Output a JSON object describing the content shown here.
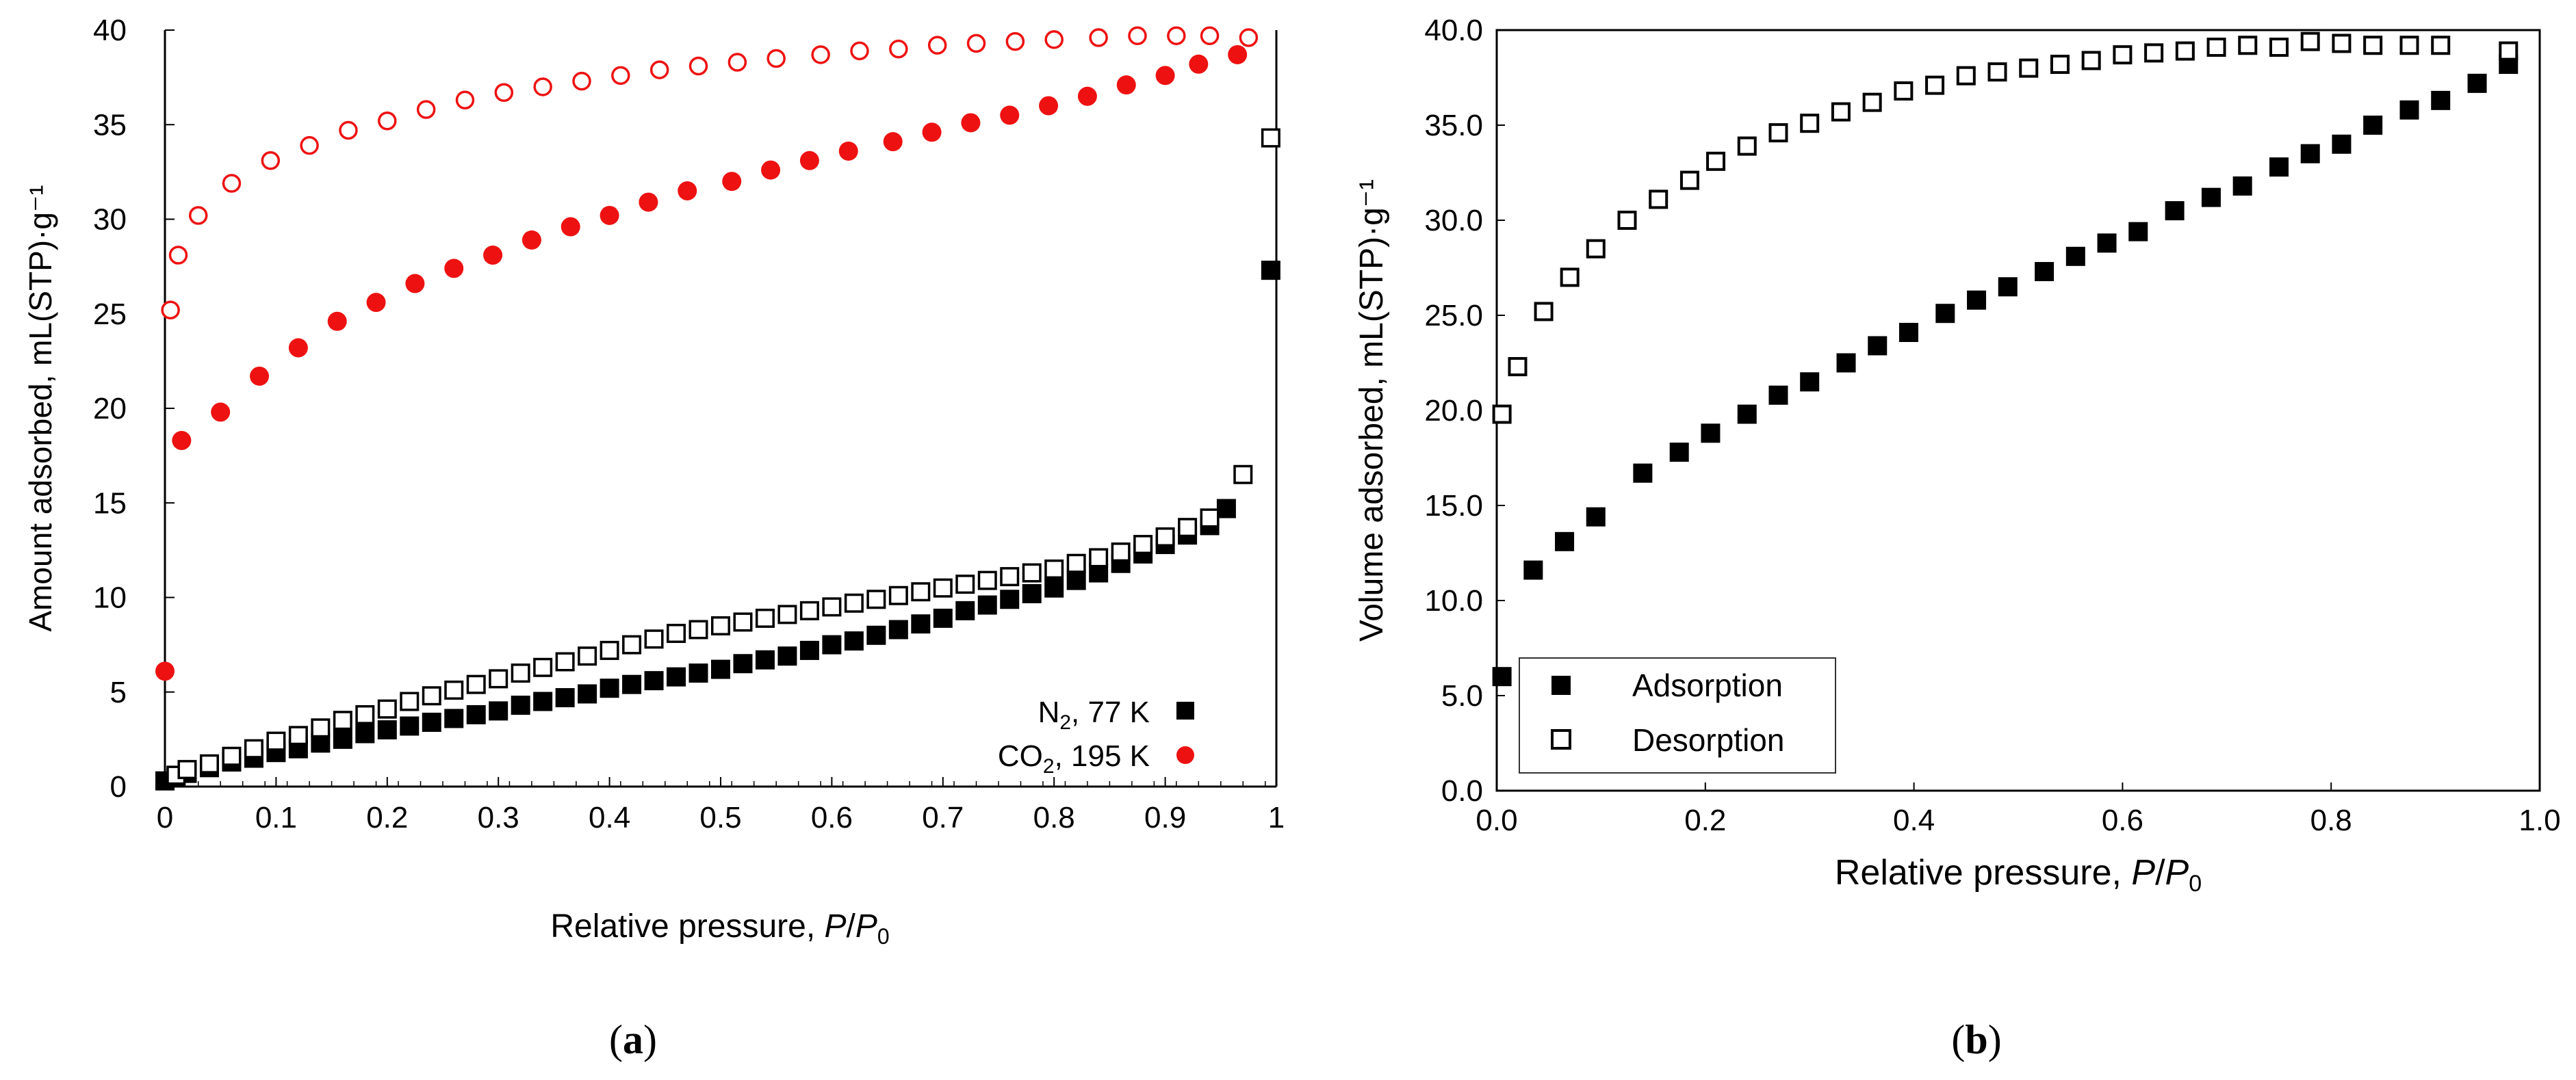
{
  "chart_data": [
    {
      "panel": "a",
      "type": "scatter",
      "caption": "(a)",
      "xlabel_prefix": "Relative pressure, ",
      "xlabel_p": "P",
      "xlabel_slash": "/",
      "xlabel_p0": "P",
      "xlabel_p0_sub": "0",
      "ylabel": "Amount adsorbed, mL(STP)·g⁻¹",
      "xlim": [
        0,
        1
      ],
      "ylim": [
        0,
        40
      ],
      "xticks": [
        0,
        0.1,
        0.2,
        0.3,
        0.4,
        0.5,
        0.6,
        0.7,
        0.8,
        0.9,
        1
      ],
      "xtick_labels": [
        "0",
        "0.1",
        "0.2",
        "0.3",
        "0.4",
        "0.5",
        "0.6",
        "0.7",
        "0.8",
        "0.9",
        "1"
      ],
      "yticks": [
        0,
        5,
        10,
        15,
        20,
        25,
        30,
        35,
        40
      ],
      "ytick_labels": [
        "0",
        "5",
        "10",
        "15",
        "20",
        "25",
        "30",
        "35",
        "40"
      ],
      "legend": {
        "position": "bottom-right",
        "entries": [
          {
            "label_main": "N",
            "label_sub": "2",
            "label_rest": ", 77 K",
            "marker": "filled-square",
            "color": "#000000"
          },
          {
            "label_main": "CO",
            "label_sub": "2",
            "label_rest": ", 195 K",
            "marker": "filled-circle",
            "color": "#ee1111"
          }
        ]
      },
      "series": [
        {
          "name": "N2 77 K adsorption",
          "marker": "filled-square",
          "color": "#000000",
          "x": [
            0.0,
            0.01,
            0.02,
            0.04,
            0.06,
            0.08,
            0.1,
            0.12,
            0.14,
            0.16,
            0.18,
            0.2,
            0.22,
            0.24,
            0.26,
            0.28,
            0.3,
            0.32,
            0.34,
            0.36,
            0.38,
            0.4,
            0.42,
            0.44,
            0.46,
            0.48,
            0.5,
            0.52,
            0.54,
            0.56,
            0.58,
            0.6,
            0.62,
            0.64,
            0.66,
            0.68,
            0.7,
            0.72,
            0.74,
            0.76,
            0.78,
            0.8,
            0.82,
            0.84,
            0.86,
            0.88,
            0.9,
            0.92,
            0.94,
            0.955,
            0.995
          ],
          "y": [
            0.3,
            0.5,
            0.7,
            1.0,
            1.3,
            1.5,
            1.8,
            2.0,
            2.3,
            2.5,
            2.8,
            3.0,
            3.2,
            3.4,
            3.6,
            3.8,
            4.0,
            4.3,
            4.5,
            4.7,
            4.9,
            5.2,
            5.4,
            5.6,
            5.8,
            6.0,
            6.2,
            6.5,
            6.7,
            6.9,
            7.2,
            7.5,
            7.7,
            8.0,
            8.3,
            8.6,
            8.9,
            9.3,
            9.6,
            9.9,
            10.2,
            10.5,
            10.9,
            11.3,
            11.8,
            12.3,
            12.8,
            13.3,
            13.8,
            14.7,
            27.3
          ]
        },
        {
          "name": "N2 77 K desorption",
          "marker": "open-square",
          "color": "#000000",
          "x": [
            0.01,
            0.02,
            0.04,
            0.06,
            0.08,
            0.1,
            0.12,
            0.14,
            0.16,
            0.18,
            0.2,
            0.22,
            0.24,
            0.26,
            0.28,
            0.3,
            0.32,
            0.34,
            0.36,
            0.38,
            0.4,
            0.42,
            0.44,
            0.46,
            0.48,
            0.5,
            0.52,
            0.54,
            0.56,
            0.58,
            0.6,
            0.62,
            0.64,
            0.66,
            0.68,
            0.7,
            0.72,
            0.74,
            0.76,
            0.78,
            0.8,
            0.82,
            0.84,
            0.86,
            0.88,
            0.9,
            0.92,
            0.94,
            0.97,
            0.995
          ],
          "y": [
            0.6,
            0.9,
            1.2,
            1.6,
            2.0,
            2.4,
            2.7,
            3.1,
            3.5,
            3.8,
            4.1,
            4.5,
            4.8,
            5.1,
            5.4,
            5.7,
            6.0,
            6.3,
            6.6,
            6.9,
            7.2,
            7.5,
            7.8,
            8.1,
            8.3,
            8.5,
            8.7,
            8.9,
            9.1,
            9.3,
            9.5,
            9.7,
            9.9,
            10.1,
            10.3,
            10.5,
            10.7,
            10.9,
            11.1,
            11.3,
            11.5,
            11.8,
            12.1,
            12.4,
            12.8,
            13.2,
            13.7,
            14.2,
            16.5,
            34.3
          ]
        },
        {
          "name": "CO2 195 K adsorption",
          "marker": "filled-circle",
          "color": "#ee1111",
          "x": [
            0.0,
            0.015,
            0.05,
            0.085,
            0.12,
            0.155,
            0.19,
            0.225,
            0.26,
            0.295,
            0.33,
            0.365,
            0.4,
            0.435,
            0.47,
            0.51,
            0.545,
            0.58,
            0.615,
            0.655,
            0.69,
            0.725,
            0.76,
            0.795,
            0.83,
            0.865,
            0.9,
            0.93,
            0.965
          ],
          "y": [
            6.1,
            18.3,
            19.8,
            21.7,
            23.2,
            24.6,
            25.6,
            26.6,
            27.4,
            28.1,
            28.9,
            29.6,
            30.2,
            30.9,
            31.5,
            32.0,
            32.6,
            33.1,
            33.6,
            34.1,
            34.6,
            35.1,
            35.5,
            36.0,
            36.5,
            37.1,
            37.6,
            38.2,
            38.7
          ]
        },
        {
          "name": "CO2 195 K desorption",
          "marker": "open-circle",
          "color": "#ee1111",
          "x": [
            0.005,
            0.012,
            0.03,
            0.06,
            0.095,
            0.13,
            0.165,
            0.2,
            0.235,
            0.27,
            0.305,
            0.34,
            0.375,
            0.41,
            0.445,
            0.48,
            0.515,
            0.55,
            0.59,
            0.625,
            0.66,
            0.695,
            0.73,
            0.765,
            0.8,
            0.84,
            0.875,
            0.91,
            0.94,
            0.975
          ],
          "y": [
            25.2,
            28.1,
            30.2,
            31.9,
            33.1,
            33.9,
            34.7,
            35.2,
            35.8,
            36.3,
            36.7,
            37.0,
            37.3,
            37.6,
            37.9,
            38.1,
            38.3,
            38.5,
            38.7,
            38.9,
            39.0,
            39.2,
            39.3,
            39.4,
            39.5,
            39.6,
            39.7,
            39.7,
            39.7,
            39.6
          ]
        }
      ]
    },
    {
      "panel": "b",
      "type": "scatter",
      "caption": "(b)",
      "xlabel_prefix": "Relative pressure, ",
      "xlabel_p": "P",
      "xlabel_slash": "/",
      "xlabel_p0": "P",
      "xlabel_p0_sub": "0",
      "ylabel": "Volume adsorbed, mL(STP)·g⁻¹",
      "xlim": [
        0,
        1
      ],
      "ylim": [
        0,
        40
      ],
      "xticks": [
        0,
        0.2,
        0.4,
        0.6,
        0.8,
        1.0
      ],
      "xtick_labels": [
        "0.0",
        "0.2",
        "0.4",
        "0.6",
        "0.8",
        "1.0"
      ],
      "yticks": [
        0,
        5,
        10,
        15,
        20,
        25,
        30,
        35,
        40
      ],
      "ytick_labels": [
        "0.0",
        "5.0",
        "10.0",
        "15.0",
        "20.0",
        "25.0",
        "30.0",
        "35.0",
        "40.0"
      ],
      "legend": {
        "position": "bottom-left",
        "entries": [
          {
            "label": "Adsorption",
            "marker": "filled-square",
            "color": "#000000"
          },
          {
            "label": "Desorption",
            "marker": "open-square",
            "color": "#000000"
          }
        ]
      },
      "series": [
        {
          "name": "Adsorption",
          "marker": "filled-square",
          "color": "#000000",
          "x": [
            0.005,
            0.035,
            0.065,
            0.095,
            0.14,
            0.175,
            0.205,
            0.24,
            0.27,
            0.3,
            0.335,
            0.365,
            0.395,
            0.43,
            0.46,
            0.49,
            0.525,
            0.555,
            0.585,
            0.615,
            0.65,
            0.685,
            0.715,
            0.75,
            0.78,
            0.81,
            0.84,
            0.875,
            0.905,
            0.94,
            0.97
          ],
          "y": [
            6.0,
            11.6,
            13.1,
            14.4,
            16.7,
            17.8,
            18.8,
            19.8,
            20.8,
            21.5,
            22.5,
            23.4,
            24.1,
            25.1,
            25.8,
            26.5,
            27.3,
            28.1,
            28.8,
            29.4,
            30.5,
            31.2,
            31.8,
            32.8,
            33.5,
            34.0,
            35.0,
            35.8,
            36.3,
            37.2,
            38.2
          ]
        },
        {
          "name": "Desorption",
          "marker": "open-square",
          "color": "#000000",
          "x": [
            0.005,
            0.02,
            0.045,
            0.07,
            0.095,
            0.125,
            0.155,
            0.185,
            0.21,
            0.24,
            0.27,
            0.3,
            0.33,
            0.36,
            0.39,
            0.42,
            0.45,
            0.48,
            0.51,
            0.54,
            0.57,
            0.6,
            0.63,
            0.66,
            0.69,
            0.72,
            0.75,
            0.78,
            0.81,
            0.84,
            0.875,
            0.905,
            0.97
          ],
          "y": [
            19.8,
            22.3,
            25.2,
            27.0,
            28.5,
            30.0,
            31.1,
            32.1,
            33.1,
            33.9,
            34.6,
            35.1,
            35.7,
            36.2,
            36.8,
            37.1,
            37.6,
            37.8,
            38.0,
            38.2,
            38.4,
            38.7,
            38.8,
            38.9,
            39.1,
            39.2,
            39.1,
            39.4,
            39.3,
            39.2,
            39.2,
            39.2,
            38.9
          ]
        }
      ]
    }
  ]
}
